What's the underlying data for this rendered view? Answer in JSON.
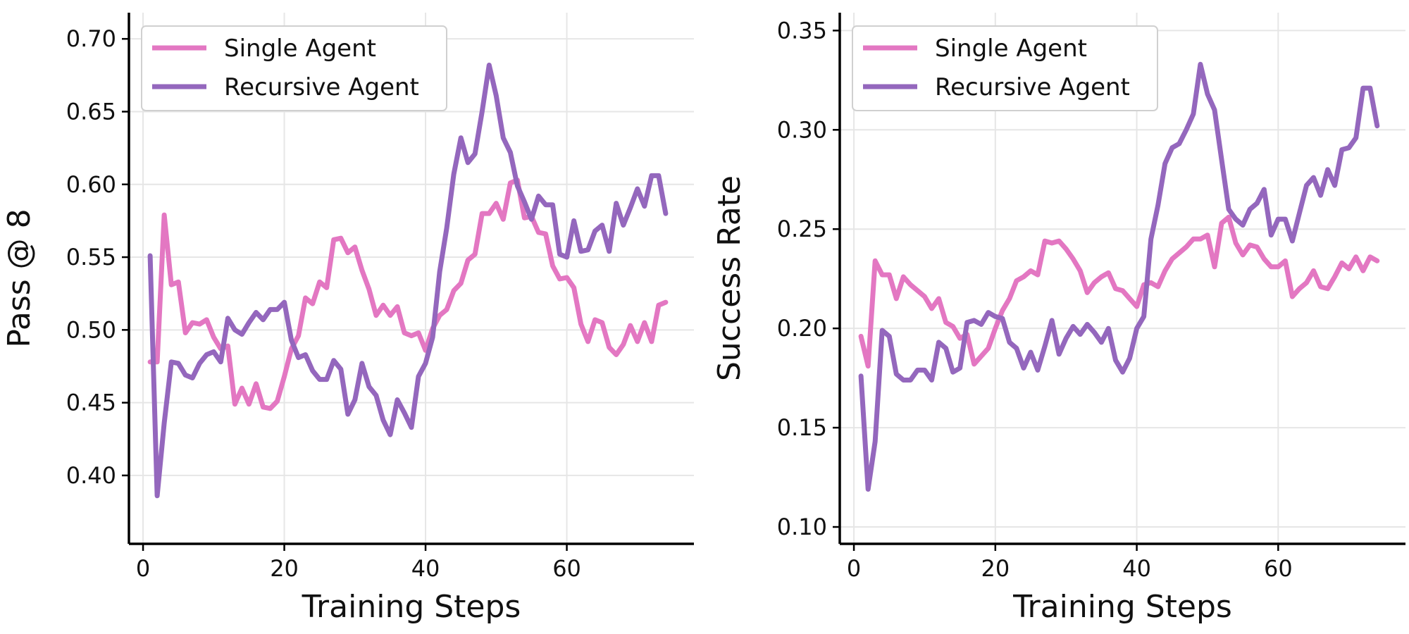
{
  "chart_data": [
    {
      "type": "line",
      "xlabel": "Training Steps",
      "ylabel": "Pass @ 8",
      "xlim": [
        -2,
        78
      ],
      "ylim": [
        0.353,
        0.718
      ],
      "xticks": [
        0,
        20,
        40,
        60
      ],
      "yticks": [
        0.4,
        0.45,
        0.5,
        0.55,
        0.6,
        0.65,
        0.7
      ],
      "ytick_decimals": 2,
      "grid": true,
      "legend": "top-left",
      "series": [
        {
          "name": "Single Agent",
          "color": "#e377c2",
          "x": [
            1,
            2,
            3,
            4,
            5,
            6,
            7,
            8,
            9,
            10,
            11,
            12,
            13,
            14,
            15,
            16,
            17,
            18,
            19,
            20,
            21,
            22,
            23,
            24,
            25,
            26,
            27,
            28,
            29,
            30,
            31,
            32,
            33,
            34,
            35,
            36,
            37,
            38,
            39,
            40,
            41,
            42,
            43,
            44,
            45,
            46,
            47,
            48,
            49,
            50,
            51,
            52,
            53,
            54,
            55,
            56,
            57,
            58,
            59,
            60,
            61,
            62,
            63,
            64,
            65,
            66,
            67,
            68,
            69,
            70,
            71,
            72,
            73,
            74
          ],
          "values": [
            0.478,
            0.478,
            0.579,
            0.531,
            0.533,
            0.498,
            0.505,
            0.504,
            0.507,
            0.495,
            0.487,
            0.489,
            0.449,
            0.46,
            0.449,
            0.463,
            0.447,
            0.446,
            0.451,
            0.468,
            0.487,
            0.496,
            0.522,
            0.518,
            0.533,
            0.529,
            0.562,
            0.563,
            0.553,
            0.557,
            0.541,
            0.528,
            0.51,
            0.517,
            0.51,
            0.516,
            0.498,
            0.496,
            0.498,
            0.486,
            0.501,
            0.51,
            0.514,
            0.527,
            0.532,
            0.548,
            0.552,
            0.58,
            0.58,
            0.587,
            0.576,
            0.601,
            0.603,
            0.577,
            0.578,
            0.567,
            0.566,
            0.544,
            0.535,
            0.536,
            0.529,
            0.504,
            0.492,
            0.507,
            0.505,
            0.488,
            0.483,
            0.49,
            0.503,
            0.492,
            0.505,
            0.492,
            0.517,
            0.519
          ]
        },
        {
          "name": "Recursive Agent",
          "color": "#9467bd",
          "x": [
            1,
            2,
            3,
            4,
            5,
            6,
            7,
            8,
            9,
            10,
            11,
            12,
            13,
            14,
            15,
            16,
            17,
            18,
            19,
            20,
            21,
            22,
            23,
            24,
            25,
            26,
            27,
            28,
            29,
            30,
            31,
            32,
            33,
            34,
            35,
            36,
            37,
            38,
            39,
            40,
            41,
            42,
            43,
            44,
            45,
            46,
            47,
            48,
            49,
            50,
            51,
            52,
            53,
            54,
            55,
            56,
            57,
            58,
            59,
            60,
            61,
            62,
            63,
            64,
            65,
            66,
            67,
            68,
            69,
            70,
            71,
            72,
            73,
            74
          ],
          "values": [
            0.551,
            0.386,
            0.436,
            0.478,
            0.477,
            0.469,
            0.467,
            0.477,
            0.483,
            0.485,
            0.478,
            0.508,
            0.5,
            0.497,
            0.505,
            0.512,
            0.507,
            0.514,
            0.514,
            0.519,
            0.493,
            0.481,
            0.483,
            0.472,
            0.466,
            0.466,
            0.479,
            0.473,
            0.442,
            0.452,
            0.477,
            0.461,
            0.455,
            0.438,
            0.428,
            0.452,
            0.443,
            0.433,
            0.468,
            0.477,
            0.495,
            0.54,
            0.57,
            0.607,
            0.632,
            0.615,
            0.621,
            0.65,
            0.682,
            0.661,
            0.632,
            0.622,
            0.599,
            0.588,
            0.576,
            0.592,
            0.586,
            0.586,
            0.552,
            0.55,
            0.575,
            0.554,
            0.555,
            0.568,
            0.572,
            0.554,
            0.587,
            0.572,
            0.584,
            0.597,
            0.585,
            0.606,
            0.606,
            0.58
          ]
        }
      ]
    },
    {
      "type": "line",
      "xlabel": "Training Steps",
      "ylabel": "Success Rate",
      "xlim": [
        -2,
        78
      ],
      "ylim": [
        0.0915,
        0.359
      ],
      "xticks": [
        0,
        20,
        40,
        60
      ],
      "yticks": [
        0.1,
        0.15,
        0.2,
        0.25,
        0.3,
        0.35
      ],
      "ytick_decimals": 2,
      "grid": true,
      "legend": "top-left",
      "series": [
        {
          "name": "Single Agent",
          "color": "#e377c2",
          "x": [
            1,
            2,
            3,
            4,
            5,
            6,
            7,
            8,
            9,
            10,
            11,
            12,
            13,
            14,
            15,
            16,
            17,
            18,
            19,
            20,
            21,
            22,
            23,
            24,
            25,
            26,
            27,
            28,
            29,
            30,
            31,
            32,
            33,
            34,
            35,
            36,
            37,
            38,
            39,
            40,
            41,
            42,
            43,
            44,
            45,
            46,
            47,
            48,
            49,
            50,
            51,
            52,
            53,
            54,
            55,
            56,
            57,
            58,
            59,
            60,
            61,
            62,
            63,
            64,
            65,
            66,
            67,
            68,
            69,
            70,
            71,
            72,
            73,
            74
          ],
          "values": [
            0.196,
            0.181,
            0.234,
            0.227,
            0.227,
            0.215,
            0.226,
            0.222,
            0.219,
            0.216,
            0.21,
            0.215,
            0.203,
            0.201,
            0.195,
            0.197,
            0.182,
            0.186,
            0.19,
            0.2,
            0.209,
            0.215,
            0.224,
            0.226,
            0.229,
            0.227,
            0.244,
            0.243,
            0.244,
            0.24,
            0.235,
            0.229,
            0.218,
            0.223,
            0.226,
            0.228,
            0.22,
            0.219,
            0.215,
            0.211,
            0.222,
            0.223,
            0.221,
            0.229,
            0.235,
            0.238,
            0.241,
            0.245,
            0.245,
            0.247,
            0.231,
            0.253,
            0.256,
            0.243,
            0.237,
            0.242,
            0.241,
            0.235,
            0.231,
            0.231,
            0.234,
            0.216,
            0.22,
            0.223,
            0.229,
            0.221,
            0.22,
            0.226,
            0.233,
            0.23,
            0.236,
            0.229,
            0.236,
            0.234
          ]
        },
        {
          "name": "Recursive Agent",
          "color": "#9467bd",
          "x": [
            1,
            2,
            3,
            4,
            5,
            6,
            7,
            8,
            9,
            10,
            11,
            12,
            13,
            14,
            15,
            16,
            17,
            18,
            19,
            20,
            21,
            22,
            23,
            24,
            25,
            26,
            27,
            28,
            29,
            30,
            31,
            32,
            33,
            34,
            35,
            36,
            37,
            38,
            39,
            40,
            41,
            42,
            43,
            44,
            45,
            46,
            47,
            48,
            49,
            50,
            51,
            52,
            53,
            54,
            55,
            56,
            57,
            58,
            59,
            60,
            61,
            62,
            63,
            64,
            65,
            66,
            67,
            68,
            69,
            70,
            71,
            72,
            73,
            74
          ],
          "values": [
            0.176,
            0.119,
            0.143,
            0.199,
            0.196,
            0.177,
            0.174,
            0.174,
            0.179,
            0.179,
            0.174,
            0.193,
            0.19,
            0.178,
            0.18,
            0.203,
            0.204,
            0.202,
            0.208,
            0.206,
            0.205,
            0.193,
            0.19,
            0.18,
            0.188,
            0.179,
            0.191,
            0.204,
            0.187,
            0.195,
            0.201,
            0.197,
            0.202,
            0.198,
            0.193,
            0.2,
            0.184,
            0.178,
            0.185,
            0.2,
            0.206,
            0.245,
            0.262,
            0.283,
            0.291,
            0.293,
            0.3,
            0.308,
            0.333,
            0.318,
            0.31,
            0.285,
            0.26,
            0.255,
            0.252,
            0.26,
            0.263,
            0.27,
            0.247,
            0.255,
            0.255,
            0.244,
            0.258,
            0.272,
            0.276,
            0.267,
            0.28,
            0.272,
            0.29,
            0.291,
            0.296,
            0.321,
            0.321,
            0.302
          ]
        }
      ]
    }
  ]
}
